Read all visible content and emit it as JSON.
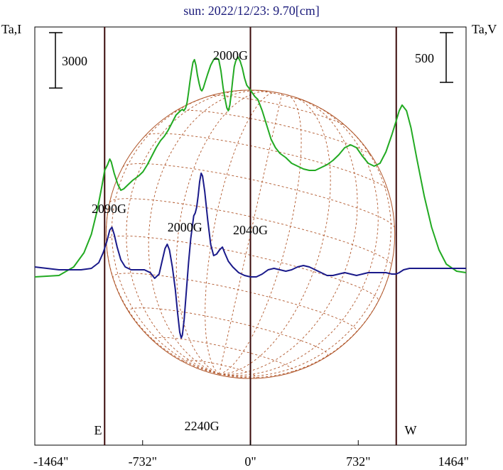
{
  "chart_data": {
    "type": "line",
    "title": "sun: 2022/12/23: 9.70[cm]",
    "left_axis_label": "Ta,I",
    "right_axis_label": "Ta,V",
    "x_ticks": [
      {
        "value": -1464,
        "label": "-1464\""
      },
      {
        "value": -732,
        "label": "-732\""
      },
      {
        "value": 0,
        "label": "0\""
      },
      {
        "value": 732,
        "label": "732\""
      },
      {
        "value": 1464,
        "label": "1464\""
      }
    ],
    "xlim": [
      -1464,
      1464
    ],
    "scale_bar_I": "3000",
    "scale_bar_V": "500",
    "limb_labels": {
      "east": "E",
      "west": "W"
    },
    "limb_positions": [
      -990,
      0,
      990
    ],
    "solar_radius": 980,
    "annotations": [
      {
        "text": "2000G",
        "x": -135
      },
      {
        "text": "2090G",
        "x": -960
      },
      {
        "text": "2000G",
        "x": -445
      },
      {
        "text": "2040G",
        "x": 0
      },
      {
        "text": "2240G",
        "x": -330
      }
    ],
    "series": [
      {
        "name": "I",
        "color": "#22aa22",
        "points": [
          [
            -1464,
            -0.05
          ],
          [
            -1300,
            -0.04
          ],
          [
            -1200,
            0.02
          ],
          [
            -1130,
            0.12
          ],
          [
            -1080,
            0.25
          ],
          [
            -1040,
            0.42
          ],
          [
            -1010,
            0.58
          ],
          [
            -990,
            0.7
          ],
          [
            -970,
            0.74
          ],
          [
            -955,
            0.78
          ],
          [
            -945,
            0.76
          ],
          [
            -925,
            0.68
          ],
          [
            -900,
            0.6
          ],
          [
            -880,
            0.56
          ],
          [
            -860,
            0.57
          ],
          [
            -830,
            0.6
          ],
          [
            -800,
            0.63
          ],
          [
            -760,
            0.66
          ],
          [
            -730,
            0.69
          ],
          [
            -700,
            0.74
          ],
          [
            -670,
            0.8
          ],
          [
            -640,
            0.86
          ],
          [
            -610,
            0.91
          ],
          [
            -585,
            0.94
          ],
          [
            -560,
            0.98
          ],
          [
            -540,
            1.02
          ],
          [
            -520,
            1.06
          ],
          [
            -505,
            1.09
          ],
          [
            -495,
            1.1
          ],
          [
            -485,
            1.11
          ],
          [
            -475,
            1.12
          ],
          [
            -462,
            1.13
          ],
          [
            -452,
            1.12
          ],
          [
            -440,
            1.14
          ],
          [
            -430,
            1.18
          ],
          [
            -420,
            1.25
          ],
          [
            -410,
            1.33
          ],
          [
            -400,
            1.4
          ],
          [
            -390,
            1.46
          ],
          [
            -380,
            1.48
          ],
          [
            -370,
            1.44
          ],
          [
            -360,
            1.37
          ],
          [
            -348,
            1.31
          ],
          [
            -338,
            1.27
          ],
          [
            -330,
            1.26
          ],
          [
            -320,
            1.28
          ],
          [
            -308,
            1.32
          ],
          [
            -290,
            1.38
          ],
          [
            -270,
            1.44
          ],
          [
            -250,
            1.48
          ],
          [
            -230,
            1.49
          ],
          [
            -215,
            1.48
          ],
          [
            -200,
            1.4
          ],
          [
            -185,
            1.28
          ],
          [
            -170,
            1.19
          ],
          [
            -160,
            1.14
          ],
          [
            -150,
            1.12
          ],
          [
            -140,
            1.16
          ],
          [
            -130,
            1.24
          ],
          [
            -120,
            1.34
          ],
          [
            -110,
            1.43
          ],
          [
            -100,
            1.47
          ],
          [
            -85,
            1.5
          ],
          [
            -70,
            1.47
          ],
          [
            -55,
            1.42
          ],
          [
            -40,
            1.35
          ],
          [
            -25,
            1.3
          ],
          [
            -10,
            1.28
          ],
          [
            10,
            1.25
          ],
          [
            30,
            1.22
          ],
          [
            50,
            1.2
          ],
          [
            80,
            1.12
          ],
          [
            110,
            1.02
          ],
          [
            140,
            0.92
          ],
          [
            170,
            0.86
          ],
          [
            200,
            0.82
          ],
          [
            240,
            0.79
          ],
          [
            280,
            0.75
          ],
          [
            320,
            0.73
          ],
          [
            360,
            0.71
          ],
          [
            400,
            0.7
          ],
          [
            440,
            0.7
          ],
          [
            480,
            0.72
          ],
          [
            520,
            0.74
          ],
          [
            560,
            0.77
          ],
          [
            600,
            0.81
          ],
          [
            640,
            0.86
          ],
          [
            680,
            0.88
          ],
          [
            720,
            0.86
          ],
          [
            760,
            0.8
          ],
          [
            800,
            0.75
          ],
          [
            840,
            0.73
          ],
          [
            880,
            0.75
          ],
          [
            920,
            0.83
          ],
          [
            960,
            0.95
          ],
          [
            990,
            1.05
          ],
          [
            1010,
            1.12
          ],
          [
            1030,
            1.16
          ],
          [
            1060,
            1.12
          ],
          [
            1090,
            1.0
          ],
          [
            1130,
            0.78
          ],
          [
            1180,
            0.52
          ],
          [
            1230,
            0.3
          ],
          [
            1280,
            0.14
          ],
          [
            1330,
            0.04
          ],
          [
            1400,
            -0.01
          ],
          [
            1464,
            -0.02
          ]
        ]
      },
      {
        "name": "V",
        "color": "#1a1a8a",
        "points": [
          [
            -1464,
            0.02
          ],
          [
            -1300,
            0.0
          ],
          [
            -1150,
            0.0
          ],
          [
            -1080,
            0.01
          ],
          [
            -1030,
            0.05
          ],
          [
            -1000,
            0.12
          ],
          [
            -975,
            0.2
          ],
          [
            -955,
            0.28
          ],
          [
            -940,
            0.3
          ],
          [
            -925,
            0.25
          ],
          [
            -905,
            0.16
          ],
          [
            -880,
            0.07
          ],
          [
            -850,
            0.02
          ],
          [
            -810,
            0.0
          ],
          [
            -760,
            0.0
          ],
          [
            -720,
            0.0
          ],
          [
            -680,
            -0.02
          ],
          [
            -650,
            -0.06
          ],
          [
            -620,
            -0.03
          ],
          [
            -600,
            0.06
          ],
          [
            -580,
            0.15
          ],
          [
            -565,
            0.18
          ],
          [
            -550,
            0.14
          ],
          [
            -530,
            0.02
          ],
          [
            -510,
            -0.14
          ],
          [
            -495,
            -0.3
          ],
          [
            -480,
            -0.44
          ],
          [
            -470,
            -0.48
          ],
          [
            -462,
            -0.46
          ],
          [
            -450,
            -0.35
          ],
          [
            -435,
            -0.15
          ],
          [
            -420,
            0.05
          ],
          [
            -405,
            0.22
          ],
          [
            -395,
            0.3
          ],
          [
            -385,
            0.38
          ],
          [
            -375,
            0.4
          ],
          [
            -365,
            0.44
          ],
          [
            -355,
            0.52
          ],
          [
            -345,
            0.62
          ],
          [
            -335,
            0.68
          ],
          [
            -325,
            0.66
          ],
          [
            -310,
            0.55
          ],
          [
            -290,
            0.35
          ],
          [
            -270,
            0.18
          ],
          [
            -250,
            0.1
          ],
          [
            -230,
            0.11
          ],
          [
            -210,
            0.14
          ],
          [
            -190,
            0.16
          ],
          [
            -175,
            0.12
          ],
          [
            -150,
            0.06
          ],
          [
            -120,
            0.02
          ],
          [
            -80,
            -0.02
          ],
          [
            -40,
            -0.04
          ],
          [
            0,
            -0.05
          ],
          [
            40,
            -0.05
          ],
          [
            80,
            -0.03
          ],
          [
            120,
            0.0
          ],
          [
            160,
            0.01
          ],
          [
            200,
            0.0
          ],
          [
            240,
            -0.01
          ],
          [
            280,
            0.0
          ],
          [
            320,
            0.02
          ],
          [
            360,
            0.03
          ],
          [
            400,
            0.02
          ],
          [
            440,
            0.0
          ],
          [
            480,
            -0.02
          ],
          [
            520,
            -0.04
          ],
          [
            560,
            -0.04
          ],
          [
            600,
            -0.03
          ],
          [
            640,
            -0.02
          ],
          [
            680,
            -0.03
          ],
          [
            720,
            -0.04
          ],
          [
            760,
            -0.03
          ],
          [
            800,
            -0.02
          ],
          [
            840,
            -0.02
          ],
          [
            880,
            -0.02
          ],
          [
            920,
            -0.02
          ],
          [
            960,
            -0.03
          ],
          [
            990,
            -0.03
          ],
          [
            1010,
            -0.02
          ],
          [
            1040,
            0.0
          ],
          [
            1080,
            0.01
          ],
          [
            1200,
            0.01
          ],
          [
            1464,
            0.01
          ]
        ]
      }
    ]
  }
}
